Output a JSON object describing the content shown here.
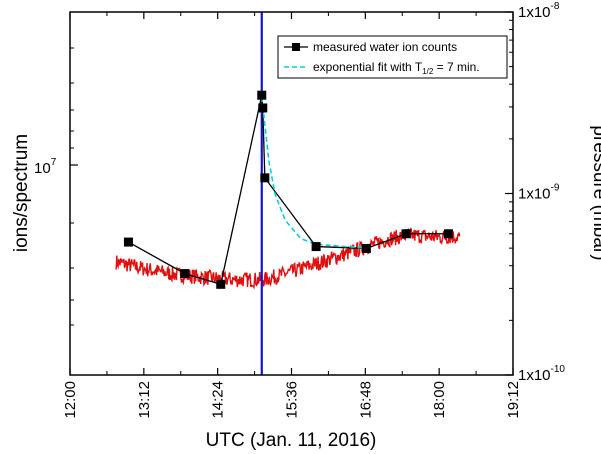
{
  "chart_data": {
    "type": "line",
    "xlabel": "UTC (Jan. 11, 2016)",
    "ylabel_left": "ions/spectrum",
    "ylabel_right": "pressure (mbar)",
    "x_ticks": [
      "12:00",
      "13:12",
      "14:24",
      "15:36",
      "16:48",
      "18:00",
      "19:12"
    ],
    "xlim": [
      "12:00",
      "19:12"
    ],
    "y_left_scale": "log",
    "y_left_ticks": [
      {
        "label": "10",
        "exp": "7"
      }
    ],
    "y_right_scale": "log",
    "y_right_ticks": [
      {
        "label": "1x10",
        "exp": "-8"
      },
      {
        "label": "1x10",
        "exp": "-9"
      },
      {
        "label": "1x10",
        "exp": "-10"
      }
    ],
    "ylim_right": [
      1e-10,
      1e-08
    ],
    "vline": {
      "x": "15:07",
      "color": "#1414c8"
    },
    "legend": {
      "placement": "top-right",
      "entries": [
        {
          "label": "measured water ion counts",
          "style": "black line with square markers"
        },
        {
          "label_prefix": "exponential fit with T",
          "label_sub": "1/2",
          "label_suffix": " = 7 min.",
          "style": "cyan dashed"
        }
      ]
    },
    "series": [
      {
        "name": "measured water ion counts",
        "color": "#000000",
        "marker": "square",
        "axis": "right",
        "points": [
          {
            "x": "12:57",
            "y": 5.4e-10
          },
          {
            "x": "13:52",
            "y": 3.62e-10
          },
          {
            "x": "14:27",
            "y": 3.16e-10
          },
          {
            "x": "15:07",
            "y": 3.48e-09
          },
          {
            "x": "15:08",
            "y": 2.96e-09
          },
          {
            "x": "15:10",
            "y": 1.22e-09
          },
          {
            "x": "16:00",
            "y": 5.1e-10
          },
          {
            "x": "16:49",
            "y": 4.98e-10
          },
          {
            "x": "17:28",
            "y": 6e-10
          },
          {
            "x": "18:09",
            "y": 6e-10
          }
        ]
      },
      {
        "name": "exponential fit with T1/2 = 7 min.",
        "color": "#00d0e0",
        "dash": true,
        "axis": "right",
        "points": [
          {
            "x": "15:07",
            "y": 3.4e-09
          },
          {
            "x": "15:10",
            "y": 2.4e-09
          },
          {
            "x": "15:14",
            "y": 1.5e-09
          },
          {
            "x": "15:20",
            "y": 9.9e-10
          },
          {
            "x": "15:30",
            "y": 7.1e-10
          },
          {
            "x": "15:45",
            "y": 5.65e-10
          },
          {
            "x": "16:00",
            "y": 5.25e-10
          },
          {
            "x": "16:49",
            "y": 5e-10
          }
        ]
      },
      {
        "name": "pressure",
        "color": "#e01010",
        "noisy": true,
        "axis": "right",
        "points": [
          {
            "x": "12:45",
            "y": 4.2e-10
          },
          {
            "x": "13:12",
            "y": 3.85e-10
          },
          {
            "x": "13:40",
            "y": 3.6e-10
          },
          {
            "x": "14:10",
            "y": 3.45e-10
          },
          {
            "x": "14:40",
            "y": 3.35e-10
          },
          {
            "x": "15:10",
            "y": 3.35e-10
          },
          {
            "x": "15:36",
            "y": 3.7e-10
          },
          {
            "x": "16:00",
            "y": 4.1e-10
          },
          {
            "x": "16:24",
            "y": 4.55e-10
          },
          {
            "x": "16:48",
            "y": 5.05e-10
          },
          {
            "x": "17:10",
            "y": 5.6e-10
          },
          {
            "x": "17:30",
            "y": 5.9e-10
          },
          {
            "x": "18:00",
            "y": 5.75e-10
          },
          {
            "x": "18:20",
            "y": 5.8e-10
          }
        ]
      }
    ]
  }
}
